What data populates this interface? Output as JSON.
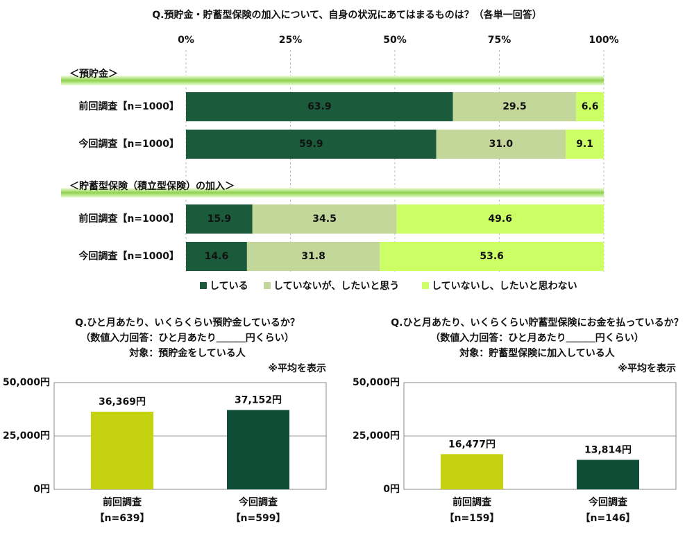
{
  "chart_data": [
    {
      "type": "stacked-barh",
      "title": "Q.預貯金・貯蓄型保険の加入について、自身の状況にあてはまるものは？（各単一回答）",
      "xlim": [
        0,
        100
      ],
      "xticks": [
        {
          "value": 0,
          "label": "0%"
        },
        {
          "value": 25,
          "label": "25%"
        },
        {
          "value": 50,
          "label": "50%"
        },
        {
          "value": 75,
          "label": "75%"
        },
        {
          "value": 100,
          "label": "100%"
        }
      ],
      "grid": true,
      "series": [
        {
          "name": "している",
          "color": "#1b5b3b"
        },
        {
          "name": "していないが、したいと思う",
          "color": "#c4d79b"
        },
        {
          "name": "していないし、したいと思わない",
          "color": "#ccff66"
        }
      ],
      "groups": [
        {
          "label": "＜預貯金＞",
          "categories": [
            "前回調査【n=1000】",
            "今回調査【n=1000】"
          ],
          "values": [
            [
              63.9,
              29.5,
              6.6
            ],
            [
              59.9,
              31.0,
              9.1
            ]
          ],
          "value_labels": [
            [
              "63.9",
              "29.5",
              "6.6"
            ],
            [
              "59.9",
              "31.0",
              "9.1"
            ]
          ]
        },
        {
          "label": "＜貯蓄型保険（積立型保険）の加入＞",
          "categories": [
            "前回調査【n=1000】",
            "今回調査【n=1000】"
          ],
          "values": [
            [
              15.9,
              34.5,
              49.6
            ],
            [
              14.6,
              31.8,
              53.6
            ]
          ],
          "value_labels": [
            [
              "15.9",
              "34.5",
              "49.6"
            ],
            [
              "14.6",
              "31.8",
              "53.6"
            ]
          ]
        }
      ]
    },
    {
      "type": "bar",
      "title": [
        "Q.ひと月あたり、いくらくらい預貯金しているか？",
        "（数値入力回答：ひと月あたり＿＿＿円くらい）",
        "対象：預貯金をしている人"
      ],
      "note": "※平均を表示",
      "categories": [
        "前回調査",
        "今回調査"
      ],
      "category_notes": [
        "【n=639】",
        "【n=599】"
      ],
      "values": [
        36369,
        37152
      ],
      "value_labels": [
        "36,369円",
        "37,152円"
      ],
      "colors": [
        "#c5d20f",
        "#0e4e36"
      ],
      "ylim": [
        0,
        50000
      ],
      "yticks": [
        {
          "value": 0,
          "label": "0円"
        },
        {
          "value": 25000,
          "label": "25,000円"
        },
        {
          "value": 50000,
          "label": "50,000円"
        }
      ],
      "grid": true
    },
    {
      "type": "bar",
      "title": [
        "Q.ひと月あたり、いくらくらい貯蓄型保険にお金を払っているか？",
        "（数値入力回答：ひと月あたり＿＿＿円くらい）",
        "対象：貯蓄型保険に加入している人"
      ],
      "note": "※平均を表示",
      "categories": [
        "前回調査",
        "今回調査"
      ],
      "category_notes": [
        "【n=159】",
        "【n=146】"
      ],
      "values": [
        16477,
        13814
      ],
      "value_labels": [
        "16,477円",
        "13,814円"
      ],
      "colors": [
        "#c5d20f",
        "#0e4e36"
      ],
      "ylim": [
        0,
        50000
      ],
      "yticks": [
        {
          "value": 0,
          "label": "0円"
        },
        {
          "value": 25000,
          "label": "25,000円"
        },
        {
          "value": 50000,
          "label": "50,000円"
        }
      ],
      "grid": true
    }
  ]
}
